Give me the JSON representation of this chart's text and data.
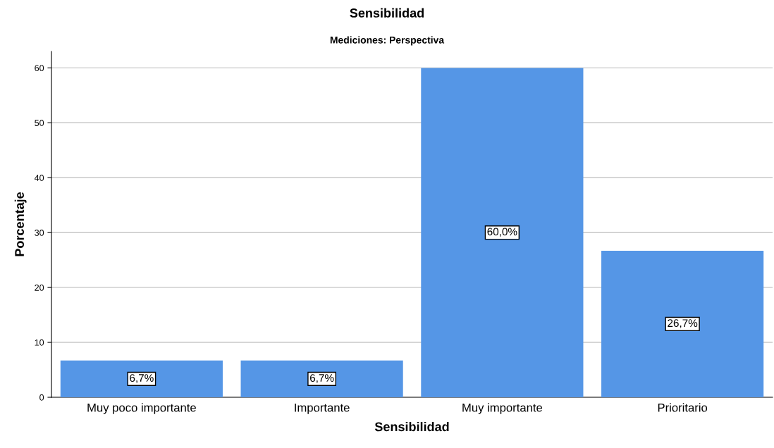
{
  "chart_data": {
    "type": "bar",
    "title": "Sensibilidad",
    "subtitle": "Mediciones: Perspectiva",
    "xlabel": "Sensibilidad",
    "ylabel": "Porcentaje",
    "categories": [
      "Muy poco importante",
      "Importante",
      "Muy importante",
      "Prioritario"
    ],
    "values": [
      6.7,
      6.7,
      60.0,
      26.7
    ],
    "value_labels": [
      "6,7%",
      "6,7%",
      "60,0%",
      "26,7%"
    ],
    "color": "#5596e6",
    "ylim": [
      0,
      63
    ],
    "yticks": [
      0,
      10,
      20,
      30,
      40,
      50,
      60
    ],
    "grid": "y"
  }
}
